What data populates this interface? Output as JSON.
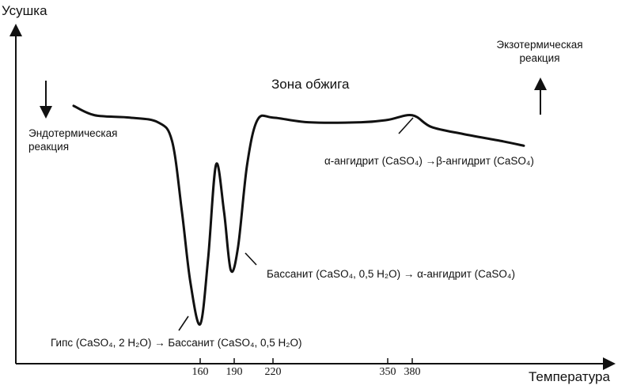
{
  "chart_data": {
    "type": "line",
    "ylabel": "Усушка",
    "xlabel": "Температура",
    "title": "Зона обжига",
    "x_ticks": [
      "160",
      "190",
      "220",
      "350",
      "380"
    ],
    "x_tick_values": [
      160,
      190,
      220,
      350,
      380
    ],
    "arrows": {
      "endothermic": "Эндотермическая реакция",
      "exothermic": "Экзотермическая реакция"
    },
    "annotations": {
      "a1": "Гипс (CaSO₄, 2 H₂O) → Бассанит (CaSO₄, 0,5 H₂O)",
      "a2": "Бассанит (CaSO₄, 0,5 H₂O) → α-ангидрит (CaSO₄)",
      "a3": "α-ангидрит (CaSO₄) →β-ангидрит (CaSO₄)"
    },
    "curve": [
      {
        "x": 70,
        "y": 0.95
      },
      {
        "x": 85,
        "y": 0.91
      },
      {
        "x": 110,
        "y": 0.9
      },
      {
        "x": 130,
        "y": 0.88
      },
      {
        "x": 140,
        "y": 0.8
      },
      {
        "x": 147,
        "y": 0.5
      },
      {
        "x": 153,
        "y": 0.2
      },
      {
        "x": 160,
        "y": 0.02
      },
      {
        "x": 167,
        "y": 0.3
      },
      {
        "x": 174,
        "y": 0.7
      },
      {
        "x": 181,
        "y": 0.5
      },
      {
        "x": 187,
        "y": 0.25
      },
      {
        "x": 193,
        "y": 0.35
      },
      {
        "x": 200,
        "y": 0.7
      },
      {
        "x": 208,
        "y": 0.89
      },
      {
        "x": 220,
        "y": 0.9
      },
      {
        "x": 260,
        "y": 0.88
      },
      {
        "x": 320,
        "y": 0.88
      },
      {
        "x": 350,
        "y": 0.89
      },
      {
        "x": 380,
        "y": 0.91
      },
      {
        "x": 410,
        "y": 0.86
      },
      {
        "x": 460,
        "y": 0.83
      },
      {
        "x": 520,
        "y": 0.8
      },
      {
        "x": 555,
        "y": 0.78
      }
    ]
  }
}
